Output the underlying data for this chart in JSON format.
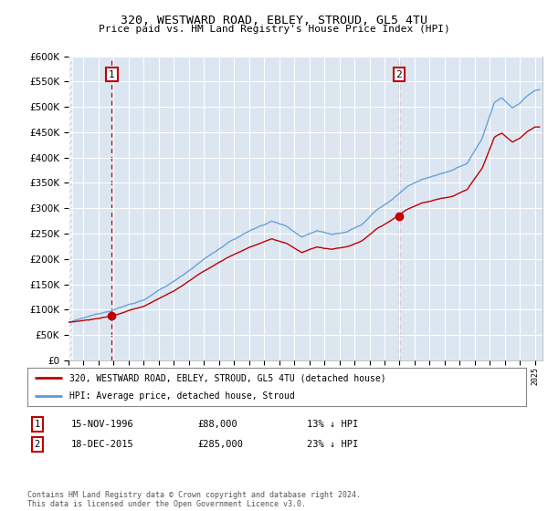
{
  "title": "320, WESTWARD ROAD, EBLEY, STROUD, GL5 4TU",
  "subtitle": "Price paid vs. HM Land Registry's House Price Index (HPI)",
  "legend_line1": "320, WESTWARD ROAD, EBLEY, STROUD, GL5 4TU (detached house)",
  "legend_line2": "HPI: Average price, detached house, Stroud",
  "transaction1_date": "15-NOV-1996",
  "transaction1_price": "£88,000",
  "transaction1_hpi": "13% ↓ HPI",
  "transaction1_year": 1996.88,
  "transaction1_value": 88000,
  "transaction2_date": "18-DEC-2015",
  "transaction2_price": "£285,000",
  "transaction2_hpi": "23% ↓ HPI",
  "transaction2_year": 2015.96,
  "transaction2_value": 285000,
  "hpi_color": "#5b9bd5",
  "price_color": "#c00000",
  "plot_bg_color": "#dce6f1",
  "ylim_min": 0,
  "ylim_max": 600000,
  "footer": "Contains HM Land Registry data © Crown copyright and database right 2024.\nThis data is licensed under the Open Government Licence v3.0."
}
